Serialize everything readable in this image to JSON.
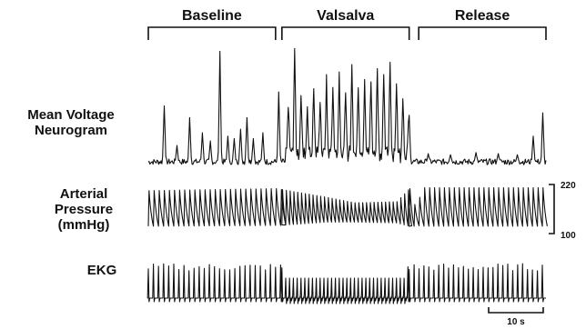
{
  "chart_data": {
    "type": "line",
    "phases": [
      {
        "name": "Baseline",
        "t_start": 0,
        "t_end": 40
      },
      {
        "name": "Valsalva",
        "t_start": 42,
        "t_end": 82
      },
      {
        "name": "Release",
        "t_start": 85,
        "t_end": 125
      }
    ],
    "channels": [
      {
        "name": "mean-voltage-neurogram",
        "label_lines": [
          "Mean Voltage",
          "Neurogram"
        ]
      },
      {
        "name": "arterial-pressure",
        "label_lines": [
          "Arterial",
          "Pressure",
          "(mmHg)"
        ],
        "scale_max": 220,
        "scale_min": 100
      },
      {
        "name": "ekg",
        "label_lines": [
          "EKG"
        ]
      }
    ],
    "scale_bar": {
      "label": "10 s",
      "seconds": 10
    },
    "time_range": [
      0,
      125
    ],
    "neurogram_bursts": [
      {
        "t": 5,
        "amp": 0.48
      },
      {
        "t": 9,
        "amp": 0.14
      },
      {
        "t": 13,
        "amp": 0.38
      },
      {
        "t": 17,
        "amp": 0.25
      },
      {
        "t": 19.5,
        "amp": 0.18
      },
      {
        "t": 22.5,
        "amp": 0.95
      },
      {
        "t": 25,
        "amp": 0.22
      },
      {
        "t": 27,
        "amp": 0.2
      },
      {
        "t": 29,
        "amp": 0.28
      },
      {
        "t": 31,
        "amp": 0.38
      },
      {
        "t": 33,
        "amp": 0.2
      },
      {
        "t": 36,
        "amp": 0.25
      },
      {
        "t": 41,
        "amp": 0.6
      },
      {
        "t": 44,
        "amp": 0.4
      },
      {
        "t": 46,
        "amp": 0.88
      },
      {
        "t": 48,
        "amp": 0.52
      },
      {
        "t": 50,
        "amp": 0.42
      },
      {
        "t": 52,
        "amp": 0.55
      },
      {
        "t": 54,
        "amp": 0.48
      },
      {
        "t": 56,
        "amp": 0.62
      },
      {
        "t": 58,
        "amp": 0.58
      },
      {
        "t": 60,
        "amp": 0.66
      },
      {
        "t": 62,
        "amp": 0.58
      },
      {
        "t": 64,
        "amp": 0.72
      },
      {
        "t": 66,
        "amp": 0.62
      },
      {
        "t": 68,
        "amp": 0.68
      },
      {
        "t": 70,
        "amp": 0.6
      },
      {
        "t": 72,
        "amp": 0.74
      },
      {
        "t": 74,
        "amp": 0.62
      },
      {
        "t": 76,
        "amp": 0.8
      },
      {
        "t": 78,
        "amp": 0.58
      },
      {
        "t": 80,
        "amp": 0.5
      },
      {
        "t": 82,
        "amp": 0.4
      },
      {
        "t": 88,
        "amp": 0.07
      },
      {
        "t": 95,
        "amp": 0.06
      },
      {
        "t": 103,
        "amp": 0.08
      },
      {
        "t": 110,
        "amp": 0.07
      },
      {
        "t": 116,
        "amp": 0.06
      },
      {
        "t": 121,
        "amp": 0.22
      },
      {
        "t": 124,
        "amp": 0.42
      }
    ],
    "pressure_envelope": [
      {
        "t": 0,
        "sys": 205,
        "dia": 118
      },
      {
        "t": 40,
        "sys": 210,
        "dia": 120
      },
      {
        "t": 55,
        "sys": 190,
        "dia": 128
      },
      {
        "t": 65,
        "sys": 175,
        "dia": 128
      },
      {
        "t": 78,
        "sys": 178,
        "dia": 126
      },
      {
        "t": 82,
        "sys": 210,
        "dia": 118
      },
      {
        "t": 84,
        "sys": 160,
        "dia": 120
      },
      {
        "t": 86,
        "sys": 212,
        "dia": 118
      },
      {
        "t": 125,
        "sys": 212,
        "dia": 118
      }
    ],
    "heart_rate_periods": [
      {
        "t_start": 0,
        "t_end": 42,
        "period_s": 1.6
      },
      {
        "t_start": 42,
        "t_end": 82,
        "period_s": 1.2
      },
      {
        "t_start": 82,
        "t_end": 125,
        "period_s": 1.55
      }
    ]
  }
}
